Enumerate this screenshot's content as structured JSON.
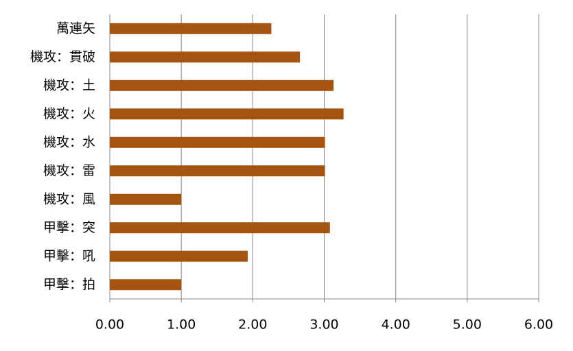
{
  "chart_data": {
    "type": "hbar",
    "categories": [
      "萬連矢",
      "機攻：貫破",
      "機攻：土",
      "機攻：火",
      "機攻：水",
      "機攻：雷",
      "機攻：風",
      "甲擊：突",
      "甲擊：吼",
      "甲擊：拍"
    ],
    "values": [
      2.26,
      2.66,
      3.13,
      3.27,
      3.01,
      3.01,
      1.0,
      3.08,
      1.93,
      1.0
    ],
    "color": "#a5540f",
    "xlim": [
      0,
      6
    ],
    "xticks": [
      {
        "value": 0,
        "label": "0.00"
      },
      {
        "value": 1,
        "label": "1.00"
      },
      {
        "value": 2,
        "label": "2.00"
      },
      {
        "value": 3,
        "label": "3.00"
      },
      {
        "value": 4,
        "label": "4.00"
      },
      {
        "value": 5,
        "label": "5.00"
      },
      {
        "value": 6,
        "label": "6.00"
      }
    ],
    "grid": true
  }
}
